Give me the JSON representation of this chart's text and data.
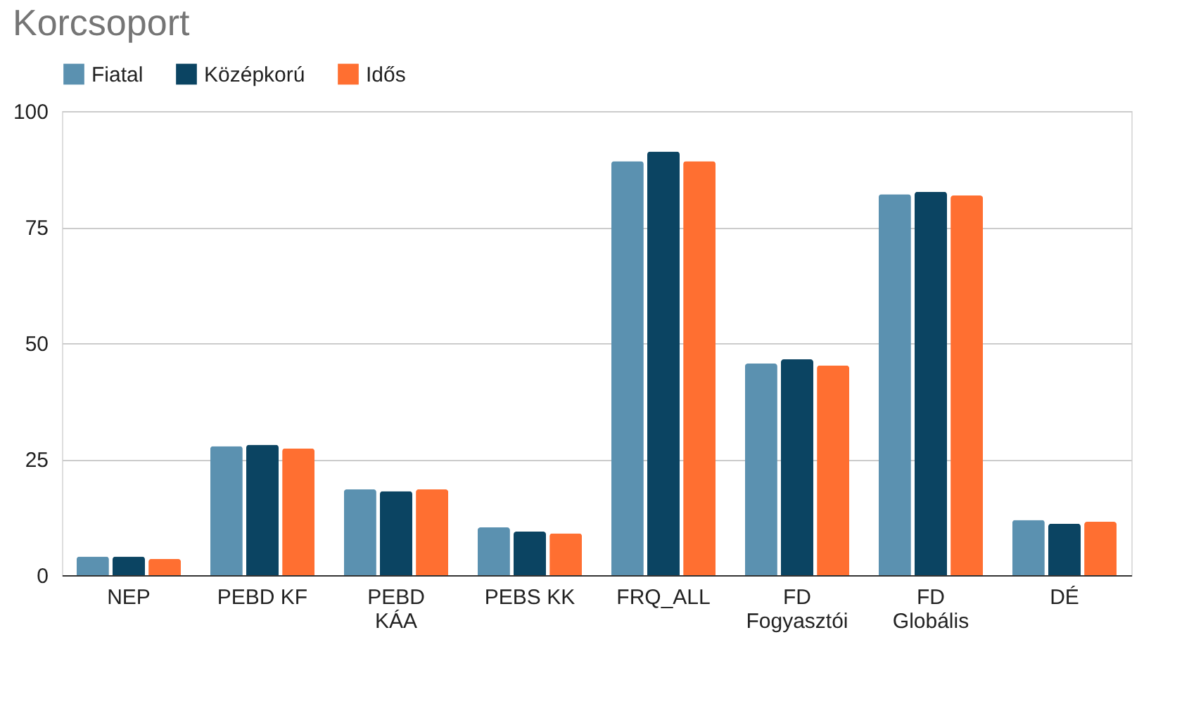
{
  "chart_data": {
    "type": "bar",
    "title": "Korcsoport",
    "categories": [
      "NEP",
      "PEBD KF",
      "PEBD KÁA",
      "PEBS KK",
      "FRQ_ALL",
      "FD Fogyasztói",
      "FD Globális",
      "DÉ"
    ],
    "series": [
      {
        "name": "Fiatal",
        "color": "#5b91b0",
        "values": [
          4.0,
          27.8,
          18.5,
          10.3,
          89.2,
          45.6,
          82.1,
          11.9
        ]
      },
      {
        "name": "Középkorú",
        "color": "#0b4462",
        "values": [
          4.0,
          28.1,
          18.1,
          9.4,
          91.3,
          46.5,
          82.6,
          11.1
        ]
      },
      {
        "name": "Idős",
        "color": "#ff6f31",
        "values": [
          3.5,
          27.3,
          18.5,
          9.0,
          89.2,
          45.2,
          81.8,
          11.5
        ]
      }
    ],
    "ylim": [
      0,
      100
    ],
    "yticks": [
      0,
      25,
      50,
      75,
      100
    ],
    "grid": "y",
    "legend": "top"
  }
}
